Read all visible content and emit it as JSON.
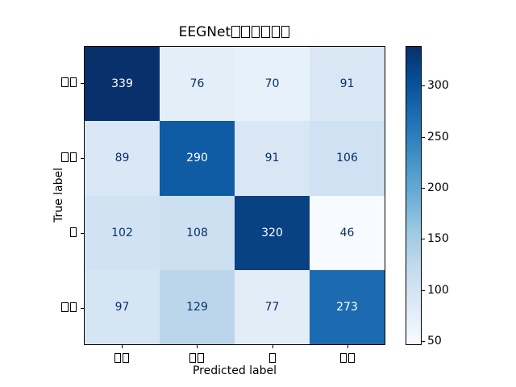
{
  "figure": {
    "background": "#ffffff"
  },
  "chart_data": {
    "type": "heatmap",
    "title": "EEGNet□□□□□□",
    "xlabel": "Predicted label",
    "ylabel": "True label",
    "x_categories": [
      "□□",
      "□□",
      "□",
      "□□"
    ],
    "y_categories": [
      "□□",
      "□□",
      "□",
      "□□"
    ],
    "values": [
      [
        339,
        76,
        70,
        91
      ],
      [
        89,
        290,
        91,
        106
      ],
      [
        102,
        108,
        320,
        46
      ],
      [
        97,
        129,
        77,
        273
      ]
    ],
    "vmin": 46,
    "vmax": 339,
    "colormap": "Blues",
    "colormap_stops": [
      "#f7fbff",
      "#deebf7",
      "#c6dbef",
      "#9ecae1",
      "#6baed6",
      "#4292c6",
      "#2171b5",
      "#08519c",
      "#08306b"
    ],
    "colorbar_ticks": [
      50,
      100,
      150,
      200,
      250,
      300
    ],
    "cell_text_color_on_dark": "#ffffff",
    "cell_text_color_on_light": "#08306b",
    "grid": false,
    "legend_position": "right-colorbar"
  }
}
